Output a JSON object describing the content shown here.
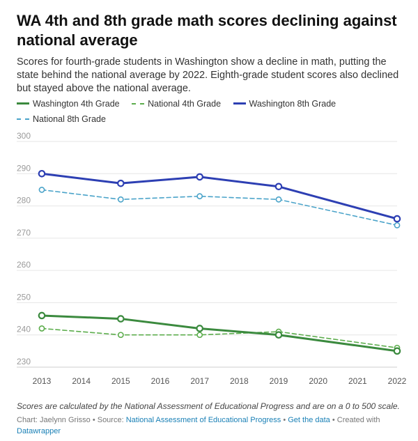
{
  "header": {
    "title": "WA 4th and 8th grade math scores declining against national average",
    "subtitle": "Scores for fourth-grade students in Washington show a decline in math, putting the state behind the national average by 2022. Eighth-grade student scores also declined but stayed above the national average."
  },
  "chart_data": {
    "type": "line",
    "x": [
      2013,
      2015,
      2017,
      2019,
      2022
    ],
    "xticks": [
      "2013",
      "2014",
      "2015",
      "2016",
      "2017",
      "2018",
      "2019",
      "2020",
      "2021",
      "2022"
    ],
    "xlim": [
      2013,
      2022
    ],
    "ylim": [
      230,
      300
    ],
    "yticks": [
      "230",
      "240",
      "250",
      "260",
      "270",
      "280",
      "290",
      "300"
    ],
    "grid": true,
    "legend_position": "top",
    "series": [
      {
        "name": "Washington 4th Grade",
        "color": "#3b8a3e",
        "style": "solid",
        "values": [
          246,
          245,
          242,
          240,
          235
        ]
      },
      {
        "name": "National 4th Grade",
        "color": "#5cad4c",
        "style": "dashed",
        "values": [
          242,
          240,
          240,
          241,
          236
        ]
      },
      {
        "name": "Washington 8th Grade",
        "color": "#2d3fb3",
        "style": "solid",
        "values": [
          290,
          287,
          289,
          286,
          276
        ]
      },
      {
        "name": "National 8th Grade",
        "color": "#4aa3c9",
        "style": "dashed",
        "values": [
          285,
          282,
          283,
          282,
          274
        ]
      }
    ]
  },
  "footer": {
    "note": "Scores are calculated by the National Assessment of Educational Progress and are on a 0 to 500 scale.",
    "chart_prefix": "Chart: Jaelynn Grisso • Source: ",
    "source_link": "National Assessment of Educational Progress",
    "separator": " • ",
    "data_link": "Get the data",
    "created_with": " • Created with ",
    "tool_link": "Datawrapper"
  }
}
